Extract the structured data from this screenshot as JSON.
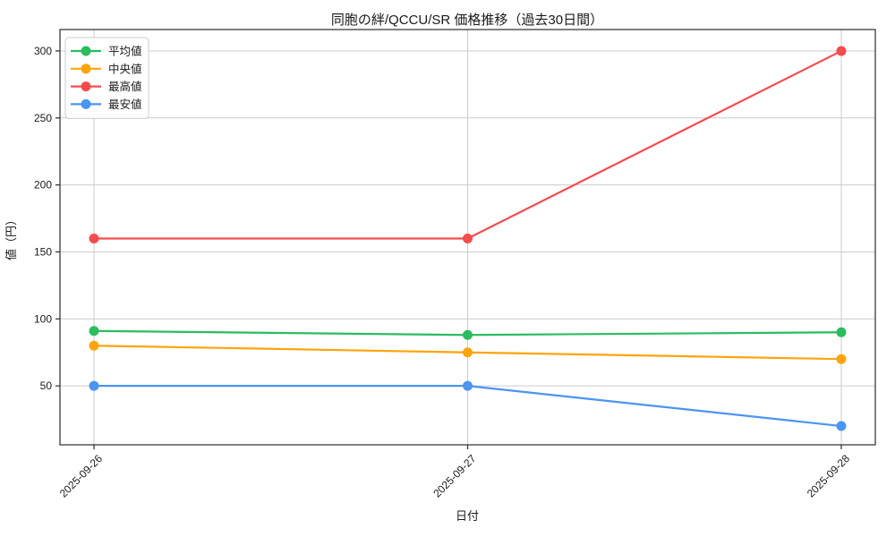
{
  "chart_data": {
    "type": "line",
    "title": "同胞の絆/QCCU/SR 価格推移（過去30日間）",
    "xlabel": "日付",
    "ylabel": "値（円）",
    "categories": [
      "2025-09-26",
      "2025-09-27",
      "2025-09-28"
    ],
    "series": [
      {
        "name": "平均値",
        "color": "#2abd5f",
        "values": [
          91,
          88,
          90
        ]
      },
      {
        "name": "中央値",
        "color": "#ffa40b",
        "values": [
          80,
          75,
          70
        ]
      },
      {
        "name": "最高値",
        "color": "#f54c4e",
        "values": [
          160,
          160,
          300
        ]
      },
      {
        "name": "最安値",
        "color": "#4b94f2",
        "values": [
          50,
          50,
          20
        ]
      }
    ],
    "yticks": [
      50,
      100,
      150,
      200,
      250,
      300
    ],
    "ylim": [
      6,
      316
    ],
    "grid": true,
    "legend_position": "upper-left",
    "colors": {
      "grid": "#cccccc",
      "frame": "#2b2b2b",
      "legend_border": "#cccccc",
      "background": "#ffffff"
    }
  }
}
